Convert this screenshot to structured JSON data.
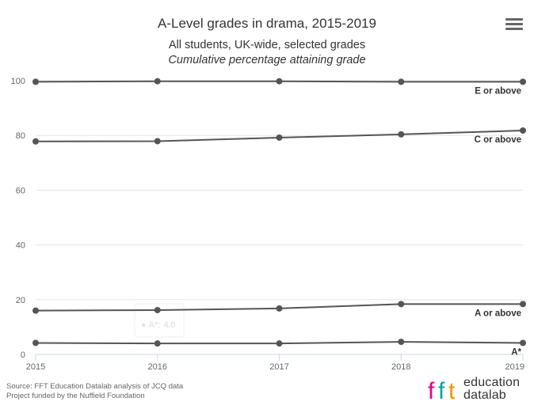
{
  "header": {
    "title": "A-Level grades in drama, 2015-2019",
    "subtitle_line1": "All students, UK-wide, selected grades",
    "subtitle_line2": "Cumulative percentage attaining grade"
  },
  "menu_icon": "hamburger-menu-icon",
  "credits": {
    "line1": "Source: FFT Education Datalab analysis of JCQ data",
    "line2": "Project funded by the Nuffield Foundation"
  },
  "logo": {
    "mark": "fft",
    "line1": "education",
    "line2": "datalab",
    "colors": [
      "#e6007e",
      "#00a3a6",
      "#f39200"
    ]
  },
  "chart_data": {
    "type": "line",
    "x": [
      2015,
      2016,
      2017,
      2018,
      2019
    ],
    "x_tick_labels": [
      "2015",
      "2016",
      "2017",
      "2018",
      "2019"
    ],
    "y_ticks": [
      0,
      20,
      40,
      60,
      80,
      100
    ],
    "ylim": [
      0,
      100
    ],
    "grid": true,
    "line_color": "#555555",
    "series": [
      {
        "name": "E or above",
        "values": [
          99.6,
          99.8,
          99.8,
          99.6,
          99.6
        ]
      },
      {
        "name": "C or above",
        "values": [
          77.8,
          77.9,
          79.2,
          80.4,
          81.8
        ]
      },
      {
        "name": "A or above",
        "values": [
          16.0,
          16.2,
          16.8,
          18.4,
          18.4
        ]
      },
      {
        "name": "A*",
        "values": [
          4.2,
          4.0,
          4.0,
          4.6,
          4.2
        ]
      }
    ],
    "tooltip": {
      "label": "A*: 4.0"
    }
  }
}
